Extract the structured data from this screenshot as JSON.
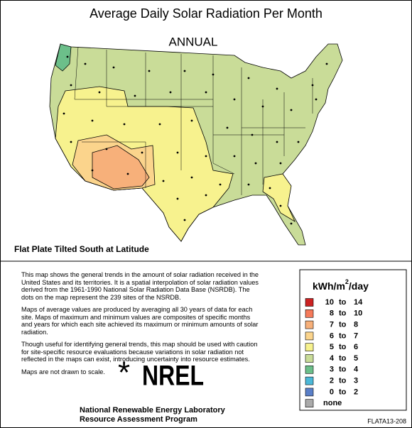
{
  "header": {
    "title": "Average Daily Solar Radiation Per Month",
    "subtitle": "ANNUAL"
  },
  "map": {
    "caption": "Flat Plate Tilted South at Latitude"
  },
  "description": {
    "paragraphs": [
      "This map shows the general trends in the amount of solar radiation received in the United States and its territories.  It is a spatial interpolation of solar radiation values derived from the 1961-1990 National Solar Radiation Data Base (NSRDB).  The dots on the map represent the 239 sites of the NSRDB.",
      "Maps of average values are produced by averaging all 30 years of data for each site. Maps of maximum and minimum values are composites of specific months and years for which each site achieved its maximum or minimum amounts of solar radiation.",
      "Though useful for identifying general trends, this map should be used with caution for site-specific resource evaluations because variations in solar radiation not reflected in the maps can exist, introducing uncertainty into resource estimates.",
      "Maps are not drawn to scale."
    ]
  },
  "logo": {
    "symbol": "*",
    "text": "NREL"
  },
  "footer": {
    "org": "National Renewable Energy Laboratory",
    "program": "Resource Assessment Program",
    "code": "FLATA13-208"
  },
  "legend": {
    "title_unit": "kWh/m",
    "title_exp": "2",
    "title_rest": "/day",
    "items": [
      {
        "low": "10",
        "sep": "to",
        "high": "14",
        "color": "#cc2222"
      },
      {
        "low": "8",
        "sep": "to",
        "high": "10",
        "color": "#f57a5a"
      },
      {
        "low": "7",
        "sep": "to",
        "high": "8",
        "color": "#f7b07a"
      },
      {
        "low": "6",
        "sep": "to",
        "high": "7",
        "color": "#fbd48c"
      },
      {
        "low": "5",
        "sep": "to",
        "high": "6",
        "color": "#f7f28e"
      },
      {
        "low": "4",
        "sep": "to",
        "high": "5",
        "color": "#c9dc98"
      },
      {
        "low": "3",
        "sep": "to",
        "high": "4",
        "color": "#6cbf8a"
      },
      {
        "low": "2",
        "sep": "to",
        "high": "3",
        "color": "#4cb8d8"
      },
      {
        "low": "0",
        "sep": "to",
        "high": "2",
        "color": "#5a7fc8"
      },
      {
        "low": "none",
        "color": "#aaaaaa"
      }
    ]
  }
}
